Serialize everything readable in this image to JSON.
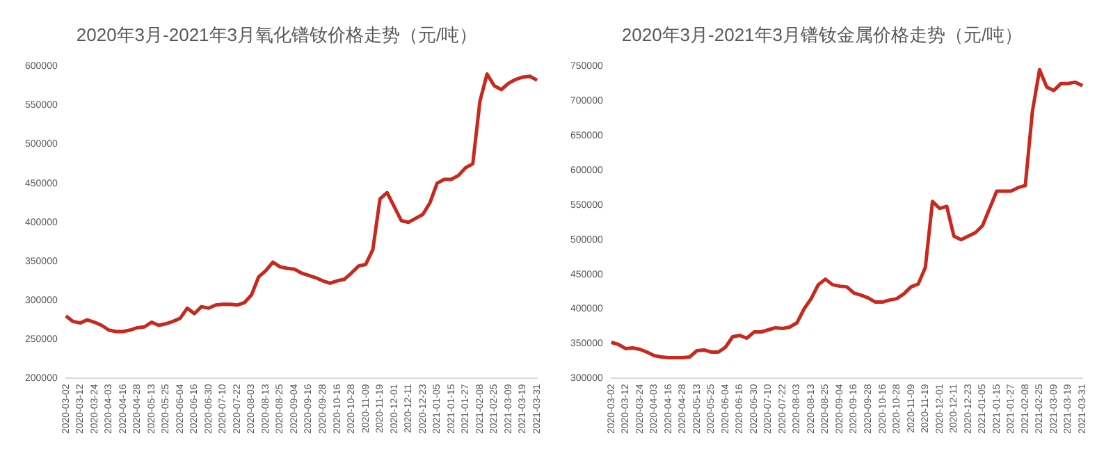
{
  "chart_data": [
    {
      "type": "line",
      "title": "2020年3月-2021年3月氧化镨钕价格走势（元/吨）",
      "categories": [
        "2020-03-02",
        null,
        "2020-03-12",
        null,
        "2020-03-24",
        null,
        "2020-04-03",
        null,
        "2020-04-16",
        null,
        "2020-04-28",
        null,
        "2020-05-13",
        null,
        "2020-05-25",
        null,
        "2020-06-04",
        null,
        "2020-06-16",
        null,
        "2020-06-30",
        null,
        "2020-07-10",
        null,
        "2020-07-22",
        null,
        "2020-08-03",
        null,
        "2020-08-13",
        null,
        "2020-08-25",
        null,
        "2020-09-04",
        null,
        "2020-09-16",
        null,
        "2020-09-28",
        null,
        "2020-10-16",
        null,
        "2020-10-28",
        null,
        "2020-11-09",
        null,
        "2020-11-19",
        null,
        "2020-12-01",
        null,
        "2020-12-11",
        null,
        "2020-12-23",
        null,
        "2021-01-05",
        null,
        "2021-01-15",
        null,
        "2021-01-27",
        null,
        "2021-02-08",
        null,
        "2021-02-25",
        null,
        "2021-03-09",
        null,
        "2021-03-19",
        null,
        "2021-03-31"
      ],
      "values": [
        280000,
        273000,
        271000,
        275000,
        272000,
        268000,
        262000,
        260000,
        260000,
        262000,
        265000,
        266000,
        272000,
        268000,
        270000,
        273000,
        277000,
        290000,
        283000,
        292000,
        290000,
        294000,
        295000,
        295000,
        294000,
        297000,
        307000,
        330000,
        338000,
        349000,
        343000,
        341000,
        340000,
        335000,
        332000,
        329000,
        325000,
        322000,
        325000,
        327000,
        335000,
        344000,
        346000,
        365000,
        430000,
        438000,
        420000,
        402000,
        400000,
        405000,
        410000,
        425000,
        450000,
        455000,
        455000,
        460000,
        470000,
        475000,
        555000,
        590000,
        575000,
        570000,
        578000,
        583000,
        586000,
        587000,
        582000
      ],
      "color": "#c8281e",
      "ylim": [
        200000,
        600000
      ],
      "yticks": [
        200000,
        250000,
        300000,
        350000,
        400000,
        450000,
        500000,
        550000,
        600000
      ]
    },
    {
      "type": "line",
      "title": "2020年3月-2021年3月镨钕金属价格走势（元/吨）",
      "categories": [
        "2020-03-02",
        null,
        "2020-03-12",
        null,
        "2020-03-24",
        null,
        "2020-04-03",
        null,
        "2020-04-16",
        null,
        "2020-04-28",
        null,
        "2020-05-13",
        null,
        "2020-05-25",
        null,
        "2020-06-04",
        null,
        "2020-06-16",
        null,
        "2020-06-30",
        null,
        "2020-07-10",
        null,
        "2020-07-22",
        null,
        "2020-08-03",
        null,
        "2020-08-13",
        null,
        "2020-08-25",
        null,
        "2020-09-04",
        null,
        "2020-09-16",
        null,
        "2020-09-28",
        null,
        "2020-10-16",
        null,
        "2020-10-28",
        null,
        "2020-11-09",
        null,
        "2020-11-19",
        null,
        "2020-12-01",
        null,
        "2020-12-11",
        null,
        "2020-12-23",
        null,
        "2021-01-05",
        null,
        "2021-01-15",
        null,
        "2021-01-27",
        null,
        "2021-02-08",
        null,
        "2021-02-25",
        null,
        "2021-03-09",
        null,
        "2021-03-19",
        null,
        "2021-03-31"
      ],
      "values": [
        352000,
        349000,
        343000,
        344000,
        342000,
        338000,
        333000,
        331000,
        330000,
        330000,
        330000,
        331000,
        340000,
        341000,
        338000,
        338000,
        345000,
        360000,
        362000,
        358000,
        367000,
        367000,
        370000,
        373000,
        372000,
        374000,
        380000,
        400000,
        415000,
        435000,
        443000,
        435000,
        433000,
        432000,
        423000,
        420000,
        416000,
        410000,
        410000,
        413000,
        415000,
        422000,
        432000,
        436000,
        460000,
        555000,
        545000,
        548000,
        505000,
        500000,
        505000,
        510000,
        520000,
        545000,
        570000,
        570000,
        570000,
        575000,
        578000,
        685000,
        745000,
        720000,
        715000,
        725000,
        725000,
        727000,
        722000
      ],
      "color": "#c8281e",
      "ylim": [
        300000,
        750000
      ],
      "yticks": [
        300000,
        350000,
        400000,
        450000,
        500000,
        550000,
        600000,
        650000,
        700000,
        750000
      ]
    }
  ]
}
